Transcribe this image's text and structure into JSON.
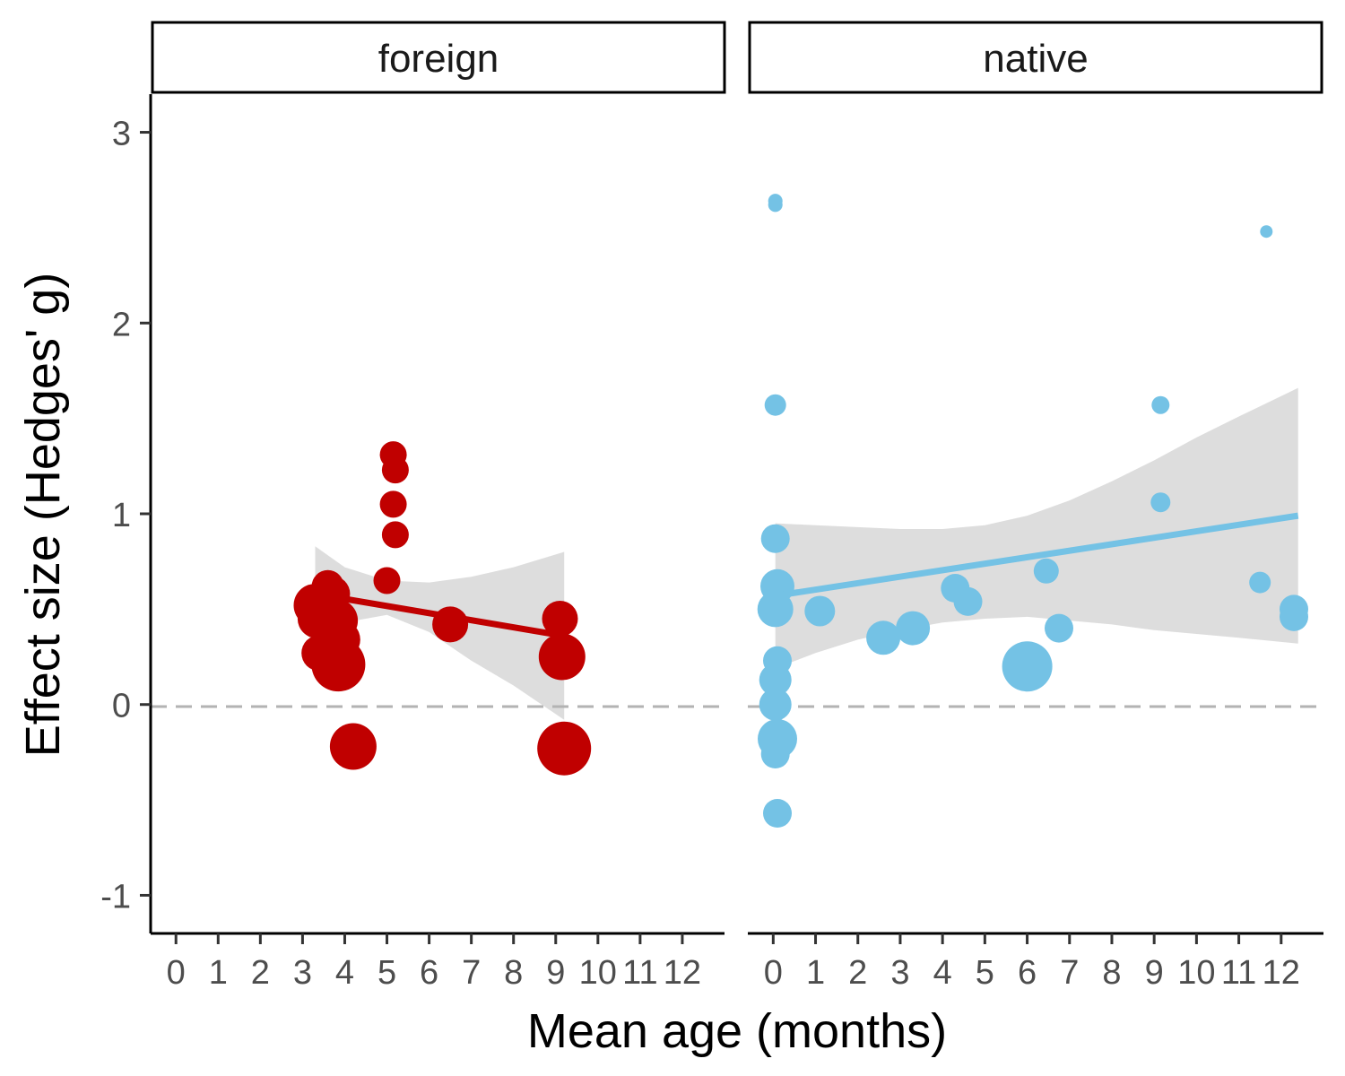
{
  "chart_data": {
    "type": "scatter",
    "xlabel": "Mean age (months)",
    "ylabel": "Effect size (Hedges' g)",
    "ylim": [
      -1.2,
      3.2
    ],
    "yticks": [
      -1,
      0,
      1,
      2,
      3
    ],
    "xticks": [
      0,
      1,
      2,
      3,
      4,
      5,
      6,
      7,
      8,
      9,
      10,
      11,
      12
    ],
    "reference_line": 0,
    "grid": false,
    "panels": [
      {
        "name": "foreign",
        "color": "#C00000",
        "xlim": [
          -0.6,
          13.0
        ],
        "points": [
          {
            "x": 3.3,
            "y": 0.52,
            "size": 24
          },
          {
            "x": 3.35,
            "y": 0.45,
            "size": 22
          },
          {
            "x": 3.4,
            "y": 0.27,
            "size": 20
          },
          {
            "x": 3.6,
            "y": 0.62,
            "size": 18
          },
          {
            "x": 3.7,
            "y": 0.58,
            "size": 20
          },
          {
            "x": 3.8,
            "y": 0.44,
            "size": 24
          },
          {
            "x": 3.9,
            "y": 0.34,
            "size": 22
          },
          {
            "x": 3.85,
            "y": 0.21,
            "size": 30
          },
          {
            "x": 4.2,
            "y": -0.22,
            "size": 26
          },
          {
            "x": 5.0,
            "y": 0.65,
            "size": 15
          },
          {
            "x": 5.15,
            "y": 1.31,
            "size": 15
          },
          {
            "x": 5.2,
            "y": 1.23,
            "size": 15
          },
          {
            "x": 5.15,
            "y": 1.05,
            "size": 15
          },
          {
            "x": 5.2,
            "y": 0.89,
            "size": 15
          },
          {
            "x": 6.5,
            "y": 0.42,
            "size": 20
          },
          {
            "x": 9.1,
            "y": 0.45,
            "size": 20
          },
          {
            "x": 9.15,
            "y": 0.25,
            "size": 26
          },
          {
            "x": 9.2,
            "y": -0.23,
            "size": 30
          }
        ],
        "trend": {
          "x": [
            3.3,
            9.2
          ],
          "y": [
            0.58,
            0.36
          ]
        },
        "ribbon": {
          "x": [
            3.3,
            4.0,
            5.0,
            6.0,
            7.0,
            8.0,
            9.2
          ],
          "upper": [
            0.83,
            0.72,
            0.65,
            0.64,
            0.67,
            0.72,
            0.8
          ],
          "lower": [
            0.34,
            0.43,
            0.47,
            0.38,
            0.23,
            0.1,
            -0.08
          ]
        }
      },
      {
        "name": "native",
        "color": "#74C2E5",
        "xlim": [
          -0.6,
          13.0
        ],
        "points": [
          {
            "x": 0.05,
            "y": 2.64,
            "size": 8
          },
          {
            "x": 0.05,
            "y": 2.62,
            "size": 8
          },
          {
            "x": 0.05,
            "y": 1.57,
            "size": 12
          },
          {
            "x": 0.05,
            "y": 0.87,
            "size": 16
          },
          {
            "x": 0.1,
            "y": 0.62,
            "size": 19
          },
          {
            "x": 0.05,
            "y": 0.5,
            "size": 20
          },
          {
            "x": 0.1,
            "y": 0.23,
            "size": 16
          },
          {
            "x": 0.05,
            "y": 0.13,
            "size": 18
          },
          {
            "x": 0.05,
            "y": 0.0,
            "size": 18
          },
          {
            "x": 0.1,
            "y": -0.18,
            "size": 22
          },
          {
            "x": 0.05,
            "y": -0.26,
            "size": 16
          },
          {
            "x": 0.1,
            "y": -0.57,
            "size": 16
          },
          {
            "x": 1.1,
            "y": 0.49,
            "size": 17
          },
          {
            "x": 2.6,
            "y": 0.35,
            "size": 19
          },
          {
            "x": 3.3,
            "y": 0.4,
            "size": 19
          },
          {
            "x": 4.3,
            "y": 0.61,
            "size": 16
          },
          {
            "x": 4.6,
            "y": 0.54,
            "size": 16
          },
          {
            "x": 6.0,
            "y": 0.2,
            "size": 28
          },
          {
            "x": 6.45,
            "y": 0.7,
            "size": 14
          },
          {
            "x": 6.75,
            "y": 0.4,
            "size": 16
          },
          {
            "x": 9.15,
            "y": 1.57,
            "size": 10
          },
          {
            "x": 9.15,
            "y": 1.06,
            "size": 11
          },
          {
            "x": 11.5,
            "y": 0.64,
            "size": 12
          },
          {
            "x": 11.65,
            "y": 2.48,
            "size": 7
          },
          {
            "x": 12.3,
            "y": 0.5,
            "size": 16
          },
          {
            "x": 12.3,
            "y": 0.46,
            "size": 16
          }
        ],
        "trend": {
          "x": [
            0.05,
            12.4
          ],
          "y": [
            0.57,
            0.99
          ]
        },
        "ribbon": {
          "x": [
            0.05,
            1.0,
            2.0,
            3.0,
            4.0,
            5.0,
            6.0,
            7.0,
            8.0,
            9.0,
            10.0,
            11.0,
            12.4
          ],
          "upper": [
            0.95,
            0.94,
            0.93,
            0.92,
            0.92,
            0.94,
            0.99,
            1.07,
            1.17,
            1.28,
            1.4,
            1.51,
            1.66
          ],
          "lower": [
            0.19,
            0.27,
            0.34,
            0.39,
            0.43,
            0.45,
            0.46,
            0.44,
            0.42,
            0.39,
            0.37,
            0.35,
            0.32
          ]
        }
      }
    ]
  }
}
